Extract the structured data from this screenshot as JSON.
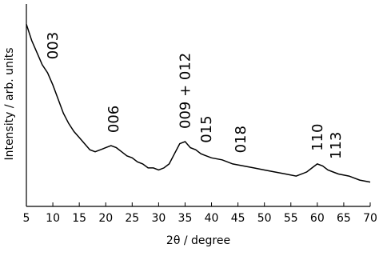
{
  "chart_data": {
    "type": "line",
    "xlabel": "2θ / degree",
    "ylabel": "Intensity / arb. units",
    "xlim": [
      5,
      70
    ],
    "xticks": [
      5,
      10,
      15,
      20,
      25,
      30,
      35,
      40,
      45,
      50,
      55,
      60,
      65,
      70
    ],
    "ylim": [
      0,
      100
    ],
    "color": "#000000",
    "x": [
      5,
      6,
      7,
      8,
      9,
      10,
      11,
      12,
      13,
      14,
      15,
      16,
      17,
      18,
      19,
      20,
      21,
      22,
      23,
      24,
      25,
      26,
      27,
      28,
      29,
      30,
      31,
      32,
      33,
      34,
      35,
      36,
      37,
      38,
      39,
      40,
      42,
      44,
      46,
      48,
      50,
      52,
      54,
      56,
      58,
      59,
      60,
      61,
      62,
      63,
      64,
      66,
      68,
      70
    ],
    "values": [
      90,
      82,
      76,
      70,
      66,
      60,
      53,
      46,
      41,
      37,
      34,
      31,
      28,
      27,
      28,
      29,
      30,
      29,
      27,
      25,
      24,
      22,
      21,
      19,
      19,
      18,
      19,
      21,
      26,
      31,
      32,
      29,
      28,
      26,
      25,
      24,
      23,
      21,
      20,
      19,
      18,
      17,
      16,
      15,
      17,
      19,
      21,
      20,
      18,
      17,
      16,
      15,
      13,
      12
    ],
    "annotations": [
      {
        "text": "003",
        "x": 10
      },
      {
        "text": "006",
        "x": 21.5
      },
      {
        "text": "009 + 012",
        "x": 35
      },
      {
        "text": "015",
        "x": 39
      },
      {
        "text": "018",
        "x": 45.5
      },
      {
        "text": "110",
        "x": 60
      },
      {
        "text": "113",
        "x": 63.5
      }
    ]
  }
}
